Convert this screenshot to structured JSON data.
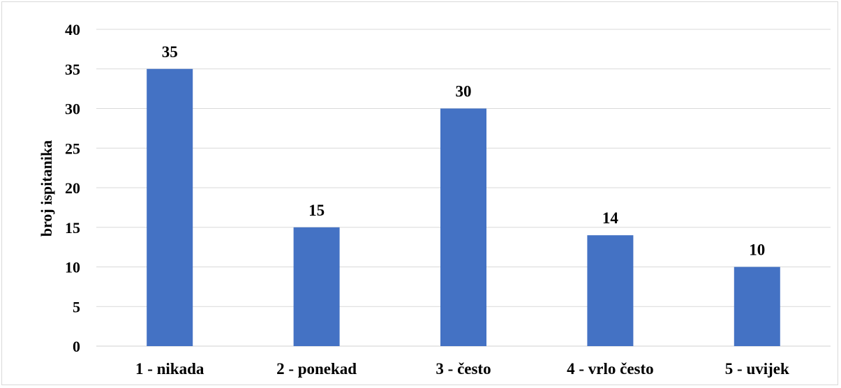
{
  "chart_data": {
    "type": "bar",
    "categories": [
      "1 - nikada",
      "2 - ponekad",
      "3 - često",
      "4 - vrlo često",
      "5 - uvijek"
    ],
    "values": [
      35,
      15,
      30,
      14,
      10
    ],
    "title": "",
    "xlabel": "",
    "ylabel": "broj ispitanika",
    "ylim": [
      0,
      40
    ],
    "yticks": [
      0,
      5,
      10,
      15,
      20,
      25,
      30,
      35,
      40
    ],
    "grid": true,
    "legend": "none",
    "bar_color": "#4472C4",
    "data_labels": true
  }
}
